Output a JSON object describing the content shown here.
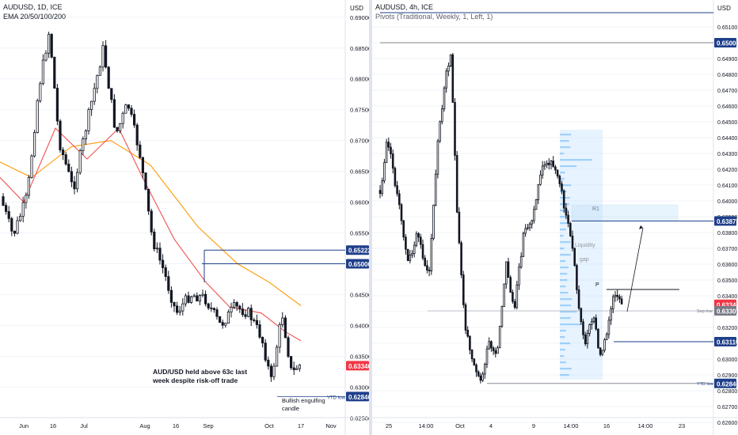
{
  "left_chart": {
    "title": "AUDUSD, 1D, ICE",
    "indicator": "EMA 20/50/100/200",
    "currency": "USD",
    "annotation_lines": [
      "AUD/USD held above 63c last",
      "week despite risk-off trade"
    ],
    "candle_note_lines": [
      "Bullish engulfing",
      "candle"
    ],
    "ytd_label": "YTD low"
  },
  "right_chart": {
    "title": "AUDUSD, 4h, ICE",
    "indicator": "Pivots (Traditional, Weekly, 1, Left, 1)",
    "currency": "USD",
    "r1_label": "R1",
    "p_label": "P",
    "gap_label_lines": [
      "Liquidity",
      "gap"
    ],
    "sep_low_label": "Sep low",
    "ytd_label": "YTD low"
  },
  "colors": {
    "bull": "#ffffff",
    "bear": "#131722",
    "ema_fast": "#ef5350",
    "ema_slow": "#ff9800",
    "level_line": "#1e3f8a",
    "price_tag": "#f23645",
    "gap_zone": "#bbdefb"
  },
  "chart_data": [
    {
      "type": "candlestick",
      "title": "AUDUSD, 1D, ICE",
      "series_names": [
        "EMA 20/50/100/200"
      ],
      "ylim": [
        0.6235,
        0.6928
      ],
      "y_ticks": [
        "0.69000",
        "0.68500",
        "0.68000",
        "0.67500",
        "0.67000",
        "0.66500",
        "0.66000",
        "0.65500",
        "0.65000",
        "0.64500",
        "0.64000",
        "0.63500",
        "0.63000",
        "0.62500"
      ],
      "x_ticks": [
        "Jun",
        "16",
        "Jul",
        "Aug",
        "16",
        "Sep",
        "Oct",
        "17",
        "Nov"
      ],
      "levels": [
        {
          "label": "0.65222",
          "value": 0.65222,
          "style": "box"
        },
        {
          "label": "0.65000",
          "value": 0.65,
          "style": "box"
        },
        {
          "label": "0.63346",
          "value": 0.63346,
          "style": "price"
        },
        {
          "label": "0.62846",
          "value": 0.62846,
          "style": "box",
          "note": "YTD low"
        }
      ],
      "last_price": 0.63346
    },
    {
      "type": "candlestick",
      "title": "AUDUSD, 4h, ICE",
      "series_names": [
        "Pivots (Traditional, Weekly, 1, Left, 1)"
      ],
      "ylim": [
        0.6257,
        0.6527
      ],
      "y_ticks": [
        "0.65100",
        "0.65000",
        "0.64900",
        "0.64800",
        "0.64700",
        "0.64600",
        "0.64500",
        "0.64400",
        "0.64300",
        "0.64200",
        "0.64100",
        "0.64000",
        "0.63900",
        "0.63800",
        "0.63700",
        "0.63600",
        "0.63500",
        "0.63400",
        "0.63300",
        "0.63200",
        "0.63100",
        "0.63000",
        "0.62900",
        "0.62800",
        "0.62700",
        "0.62600"
      ],
      "x_ticks": [
        "25",
        "14:00",
        "Oct",
        "4",
        "9",
        "14:00",
        "16",
        "14:00",
        "23"
      ],
      "levels": [
        {
          "label": "0.65000",
          "value": 0.65,
          "style": "box"
        },
        {
          "label": "0.63873",
          "value": 0.63873,
          "style": "box",
          "note": "R1"
        },
        {
          "label": "0.63346",
          "value": 0.63346,
          "style": "price"
        },
        {
          "label": "0.63305",
          "value": 0.63305,
          "style": "grey",
          "note": "Sep low"
        },
        {
          "label": "0.63110",
          "value": 0.6311,
          "style": "box"
        },
        {
          "label": "0.62846",
          "value": 0.62846,
          "style": "box",
          "note": "YTD low"
        }
      ],
      "last_price": 0.63346
    }
  ]
}
